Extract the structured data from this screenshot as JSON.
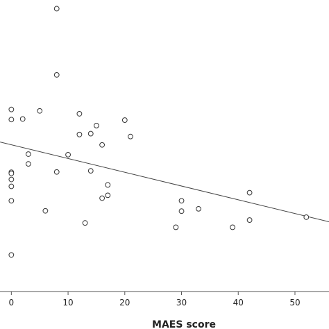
{
  "chart_data": {
    "type": "scatter",
    "title": "",
    "xlabel": "MAES score",
    "ylabel": "",
    "xlim": [
      -2,
      56
    ],
    "ylim": [
      0,
      100
    ],
    "x_ticks": [
      0,
      10,
      20,
      30,
      40,
      50
    ],
    "x_tick_labels": [
      "0",
      "10",
      "20",
      "30",
      "40",
      "50"
    ],
    "grid": false,
    "legend": "none",
    "colors": {
      "marker_stroke": "#333333",
      "marker_fill": "#ffffff",
      "fit_line": "#444444",
      "axis": "#555555"
    },
    "series": [
      {
        "points": [
          {
            "x": 8,
            "y": 97
          },
          {
            "x": 8,
            "y": 74
          },
          {
            "x": 0,
            "y": 62
          },
          {
            "x": 5,
            "y": 61.5
          },
          {
            "x": 12,
            "y": 60.5
          },
          {
            "x": 0,
            "y": 58.5
          },
          {
            "x": 2,
            "y": 58.7
          },
          {
            "x": 20,
            "y": 58.3
          },
          {
            "x": 15,
            "y": 56.4
          },
          {
            "x": 12,
            "y": 53.3
          },
          {
            "x": 14,
            "y": 53.6
          },
          {
            "x": 21,
            "y": 52.6
          },
          {
            "x": 16,
            "y": 49.7
          },
          {
            "x": 3,
            "y": 46.5
          },
          {
            "x": 10,
            "y": 46.3
          },
          {
            "x": 3,
            "y": 43.1
          },
          {
            "x": 0,
            "y": 40.2
          },
          {
            "x": 0,
            "y": 39.8
          },
          {
            "x": 8,
            "y": 40.3
          },
          {
            "x": 14,
            "y": 40.7
          },
          {
            "x": 0,
            "y": 37.7
          },
          {
            "x": 0,
            "y": 35.3
          },
          {
            "x": 17,
            "y": 35.8
          },
          {
            "x": 42,
            "y": 33.1
          },
          {
            "x": 17,
            "y": 32.2
          },
          {
            "x": 16,
            "y": 31.2
          },
          {
            "x": 0,
            "y": 30.3
          },
          {
            "x": 30,
            "y": 30.3
          },
          {
            "x": 33,
            "y": 27.5
          },
          {
            "x": 6,
            "y": 26.8
          },
          {
            "x": 30,
            "y": 26.7
          },
          {
            "x": 42,
            "y": 23.6
          },
          {
            "x": 52,
            "y": 24.6
          },
          {
            "x": 13,
            "y": 22.6
          },
          {
            "x": 29,
            "y": 21.1
          },
          {
            "x": 39,
            "y": 21.1
          },
          {
            "x": 0,
            "y": 11.5
          }
        ]
      }
    ],
    "fit_line": {
      "x": [
        -2,
        56
      ],
      "y": [
        50.7,
        23.0
      ]
    }
  }
}
